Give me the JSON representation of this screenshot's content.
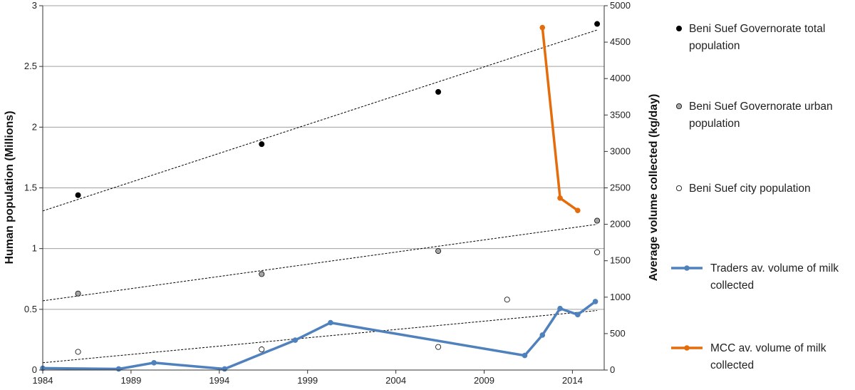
{
  "chart_data": {
    "type": "line",
    "ylabel": "Human population (Millions)",
    "y2label": "Average volume collected (kg/day)",
    "xlim": [
      1984,
      2015.8
    ],
    "ylim": [
      0,
      3
    ],
    "y2lim": [
      0,
      5000
    ],
    "x_ticks": [
      1984,
      1989,
      1994,
      1999,
      2004,
      2009,
      2014
    ],
    "y_ticks": [
      "0",
      "0.5",
      "1",
      "1.5",
      "2",
      "2.5",
      "3"
    ],
    "y2_ticks": [
      "0",
      "500",
      "1000",
      "1500",
      "2000",
      "2500",
      "3000",
      "3500",
      "4000",
      "4500",
      "5000"
    ],
    "grid": "horizontal",
    "legend_position": "right",
    "colors": {
      "traders": "#4f81bd",
      "mcc": "#e46c0a",
      "total_marker": "#000000",
      "urban_marker": "#a6a6a6",
      "city_marker": "#ffffff",
      "trend": "#000000",
      "grid": "#a0a0a0"
    },
    "series": [
      {
        "key": "total",
        "name": "Beni Suef Governorate total population",
        "name_lines": [
          "Beni Suef Governorate total",
          "population"
        ],
        "axis": "left",
        "style": "markers",
        "x": [
          1986,
          1996.4,
          2006.4,
          2015.4
        ],
        "y": [
          1.44,
          1.86,
          2.29,
          2.85
        ],
        "trend": [
          [
            1984,
            1.31
          ],
          [
            2015.4,
            2.8
          ]
        ]
      },
      {
        "key": "urban",
        "name": "Beni Suef Governorate urban population",
        "name_lines": [
          "Beni Suef Governorate urban",
          "population"
        ],
        "axis": "left",
        "style": "markers",
        "x": [
          1986,
          1996.4,
          2006.4,
          2015.4
        ],
        "y": [
          0.63,
          0.79,
          0.98,
          1.23
        ],
        "trend": [
          [
            1984,
            0.57
          ],
          [
            2015.4,
            1.2
          ]
        ]
      },
      {
        "key": "city",
        "name": "Beni Suef city population",
        "name_lines": [
          "Beni Suef city population"
        ],
        "axis": "left",
        "style": "markers",
        "x": [
          1986,
          1996.4,
          2006.4,
          2010.3,
          2015.4
        ],
        "y": [
          0.15,
          0.17,
          0.19,
          0.58,
          0.97
        ],
        "trend": [
          [
            1984,
            0.06
          ],
          [
            2015.4,
            0.49
          ]
        ]
      },
      {
        "key": "traders",
        "name": "Traders av. volume of milk collected",
        "name_lines": [
          "Traders av. volume of milk",
          "collected"
        ],
        "axis": "right",
        "style": "line",
        "x": [
          1984,
          1988.3,
          1990.3,
          1994.3,
          1998.3,
          2000.3,
          2011.3,
          2012.3,
          2013.3,
          2014.3,
          2015.3
        ],
        "y": [
          25,
          15,
          100,
          15,
          410,
          650,
          200,
          480,
          845,
          760,
          940
        ]
      },
      {
        "key": "mcc",
        "name": "MCC av. volume of milk collected",
        "name_lines": [
          "MCC av. volume of milk",
          "collected"
        ],
        "axis": "right",
        "style": "line",
        "x": [
          2012.3,
          2013.3,
          2014.3
        ],
        "y": [
          4700,
          2360,
          2190
        ]
      }
    ]
  }
}
